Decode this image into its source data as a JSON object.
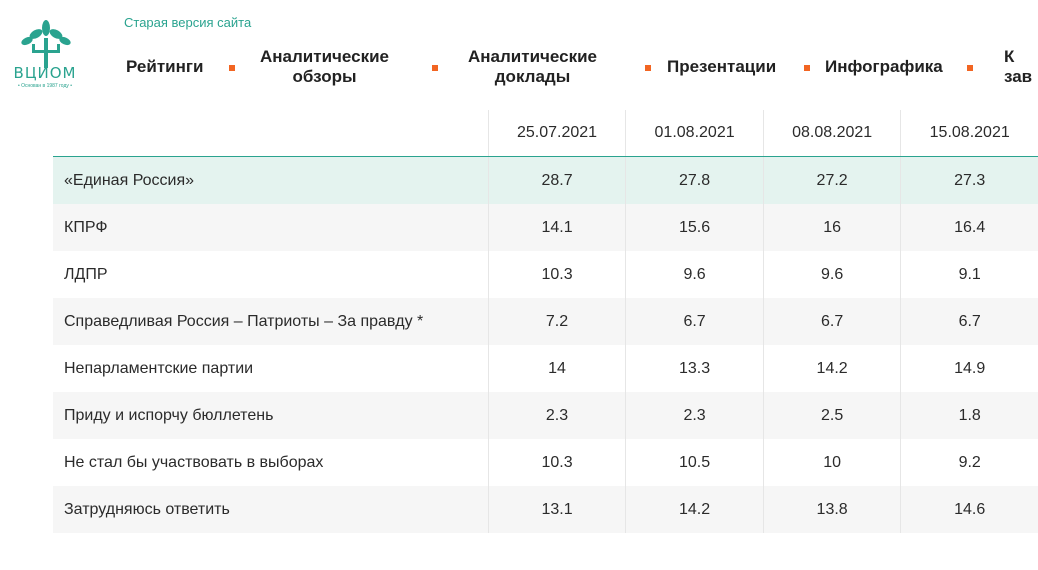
{
  "header": {
    "logo_text": "ВЦИОМ",
    "logo_subtitle": "• Основан в 1987 году •",
    "old_version_link": "Старая версия сайта",
    "nav": [
      {
        "label": "Рейтинги"
      },
      {
        "label": "Аналитические\nобзоры"
      },
      {
        "label": "Аналитические\nдоклады"
      },
      {
        "label": "Презентации"
      },
      {
        "label": "Инфографика"
      },
      {
        "label": "К\nзав"
      }
    ]
  },
  "colors": {
    "brand": "#2aa38f",
    "accent": "#f26522",
    "highlight_row": "#e4f3ef"
  },
  "table": {
    "columns": [
      "25.07.2021",
      "01.08.2021",
      "08.08.2021",
      "15.08.2021"
    ],
    "rows": [
      {
        "label": "«Единая Россия»",
        "values": [
          "28.7",
          "27.8",
          "27.2",
          "27.3"
        ]
      },
      {
        "label": "КПРФ",
        "values": [
          "14.1",
          "15.6",
          "16",
          "16.4"
        ]
      },
      {
        "label": "ЛДПР",
        "values": [
          "10.3",
          "9.6",
          "9.6",
          "9.1"
        ]
      },
      {
        "label": "Справедливая Россия – Патриоты – За правду *",
        "values": [
          "7.2",
          "6.7",
          "6.7",
          "6.7"
        ]
      },
      {
        "label": "Непарламентские партии",
        "values": [
          "14",
          "13.3",
          "14.2",
          "14.9"
        ]
      },
      {
        "label": "Приду и испорчу бюллетень",
        "values": [
          "2.3",
          "2.3",
          "2.5",
          "1.8"
        ]
      },
      {
        "label": "Не стал бы участвовать в выборах",
        "values": [
          "10.3",
          "10.5",
          "10",
          "9.2"
        ]
      },
      {
        "label": "Затрудняюсь ответить",
        "values": [
          "13.1",
          "14.2",
          "13.8",
          "14.6"
        ]
      }
    ]
  }
}
